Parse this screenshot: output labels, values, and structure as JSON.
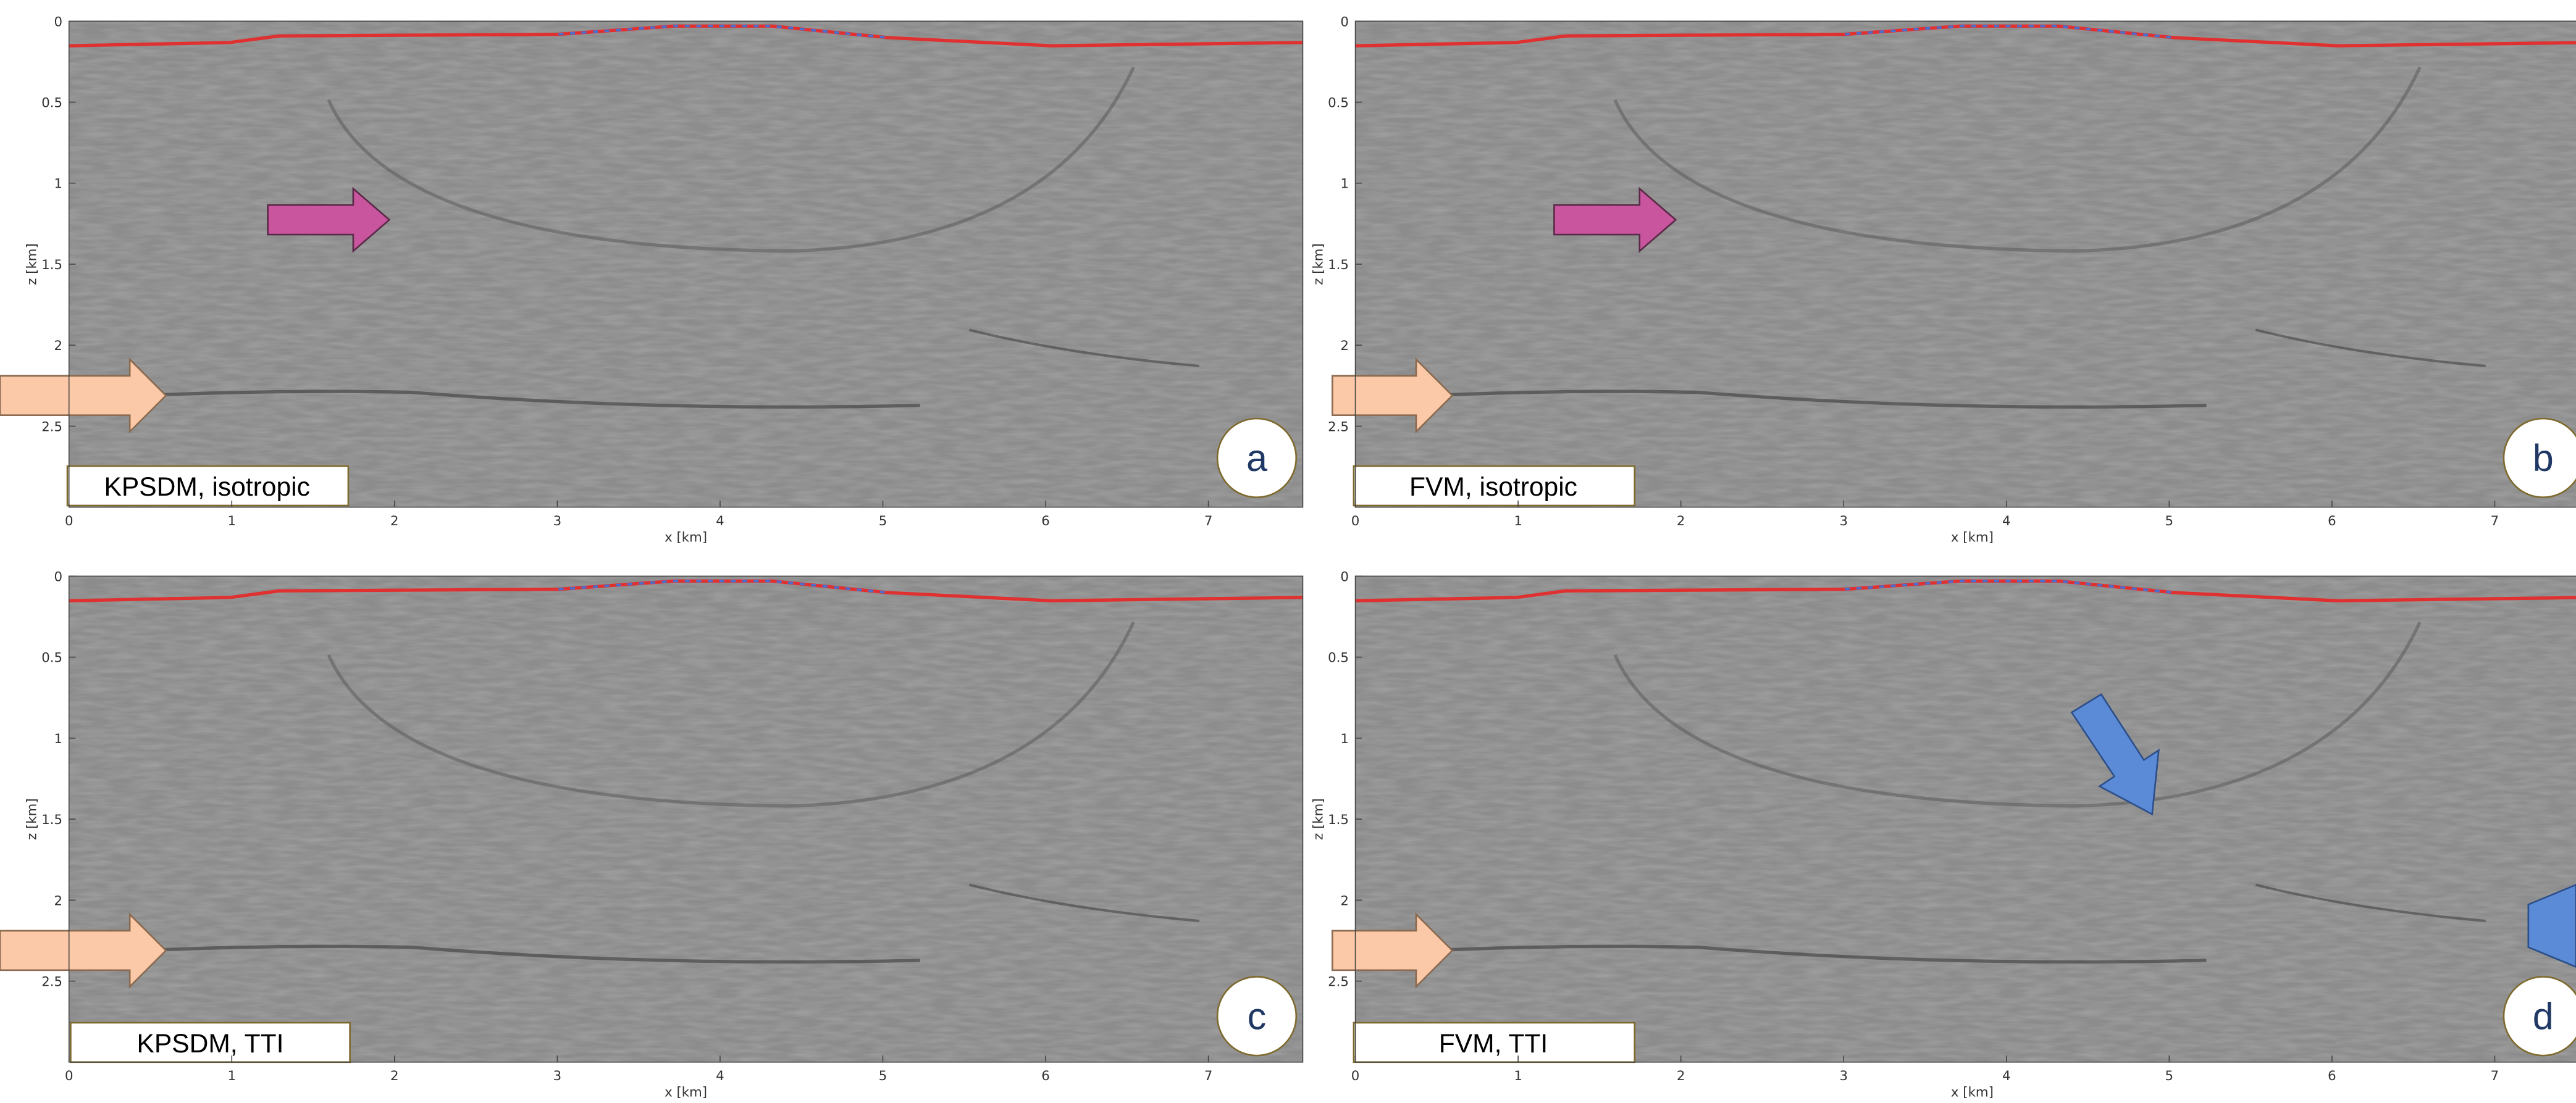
{
  "chart_data": [
    {
      "type": "image",
      "title": "KPSDM, isotropic",
      "annotation": "a",
      "x_label": "x [km]",
      "y_label": "z [km]",
      "xlim": [
        0,
        7.58
      ],
      "ylim": [
        0,
        3
      ],
      "y_inverted": true,
      "xticks": [
        0,
        1,
        2,
        3,
        4,
        5,
        6,
        7
      ],
      "yticks": [
        0,
        0.5,
        1,
        1.5,
        2,
        2.5
      ]
    },
    {
      "type": "image",
      "title": "FVM, isotropic",
      "annotation": "b",
      "x_label": "x [km]",
      "y_label": "z [km]",
      "xlim": [
        0,
        7.58
      ],
      "ylim": [
        0,
        3
      ],
      "y_inverted": true,
      "xticks": [
        0,
        1,
        2,
        3,
        4,
        5,
        6,
        7
      ],
      "yticks": [
        0,
        0.5,
        1,
        1.5,
        2,
        2.5
      ]
    },
    {
      "type": "image",
      "title": "KPSDM, TTI",
      "annotation": "c",
      "x_label": "x [km]",
      "y_label": "z [km]",
      "xlim": [
        0,
        7.58
      ],
      "ylim": [
        0,
        3
      ],
      "y_inverted": true,
      "xticks": [
        0,
        1,
        2,
        3,
        4,
        5,
        6,
        7
      ],
      "yticks": [
        0,
        0.5,
        1,
        1.5,
        2,
        2.5
      ]
    },
    {
      "type": "image",
      "title": "FVM, TTI",
      "annotation": "d",
      "x_label": "x [km]",
      "y_label": "z [km]",
      "xlim": [
        0,
        7.58
      ],
      "ylim": [
        0,
        3
      ],
      "y_inverted": true,
      "xticks": [
        0,
        1,
        2,
        3,
        4,
        5,
        6,
        7
      ],
      "yticks": [
        0,
        0.5,
        1,
        1.5,
        2,
        2.5
      ]
    }
  ]
}
